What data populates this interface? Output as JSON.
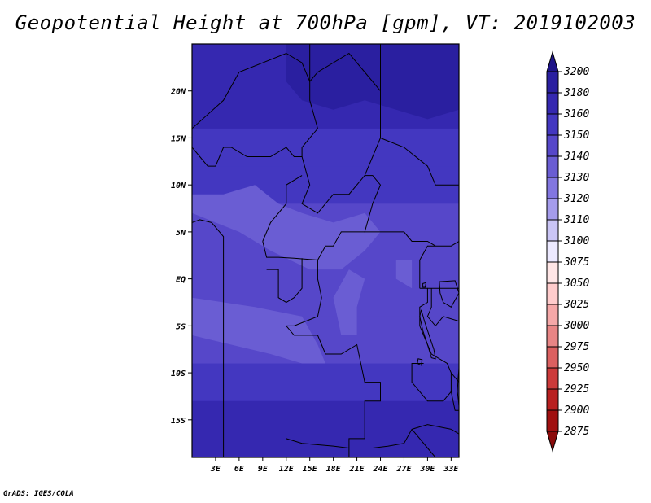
{
  "title": "Geopotential Height at 700hPa [gpm], VT: 2019102003",
  "credit": "GrADS: IGES/COLA",
  "map": {
    "lon_range": [
      0,
      34
    ],
    "lat_range": [
      -19,
      25
    ],
    "lon_ticks": [
      {
        "value": 3,
        "label": "3E"
      },
      {
        "value": 6,
        "label": "6E"
      },
      {
        "value": 9,
        "label": "9E"
      },
      {
        "value": 12,
        "label": "12E"
      },
      {
        "value": 15,
        "label": "15E"
      },
      {
        "value": 18,
        "label": "18E"
      },
      {
        "value": 21,
        "label": "21E"
      },
      {
        "value": 24,
        "label": "24E"
      },
      {
        "value": 27,
        "label": "27E"
      },
      {
        "value": 30,
        "label": "30E"
      },
      {
        "value": 33,
        "label": "33E"
      }
    ],
    "lat_ticks": [
      {
        "value": 20,
        "label": "20N"
      },
      {
        "value": 15,
        "label": "15N"
      },
      {
        "value": 10,
        "label": "10N"
      },
      {
        "value": 5,
        "label": "5N"
      },
      {
        "value": 0,
        "label": "EQ"
      },
      {
        "value": -5,
        "label": "5S"
      },
      {
        "value": -10,
        "label": "10S"
      },
      {
        "value": -15,
        "label": "15S"
      }
    ]
  },
  "colorbar": {
    "levels": [
      "3200",
      "3180",
      "3160",
      "3150",
      "3140",
      "3130",
      "3120",
      "3110",
      "3100",
      "3075",
      "3050",
      "3025",
      "3000",
      "2975",
      "2950",
      "2925",
      "2900",
      "2875"
    ],
    "colors": [
      "#1e1488",
      "#2a1fa0",
      "#3528b0",
      "#4337c0",
      "#5647c9",
      "#6a5dd3",
      "#8276e0",
      "#a59cec",
      "#cac5f5",
      "#ece9ff",
      "#ffe6e6",
      "#ffcccc",
      "#f5a8a8",
      "#e88585",
      "#db6060",
      "#cc3a3a",
      "#b82020",
      "#a01010",
      "#8a0a0a"
    ]
  },
  "chart_data": {
    "type": "heatmap",
    "title": "Geopotential Height at 700hPa [gpm], VT: 2019102003",
    "xlabel": "",
    "ylabel": "",
    "x_range": [
      0,
      34
    ],
    "y_range": [
      -19,
      25
    ],
    "color_levels": [
      2875,
      2900,
      2925,
      2950,
      2975,
      3000,
      3025,
      3050,
      3075,
      3100,
      3110,
      3120,
      3130,
      3140,
      3150,
      3160,
      3180,
      3200
    ],
    "field_bands": [
      {
        "lat_from": 16,
        "lat_to": 25,
        "value": 3160
      },
      {
        "lat_from": 12,
        "lat_to": 16,
        "value": 3150
      },
      {
        "lat_from": 8,
        "lat_to": 12,
        "value": 3150
      },
      {
        "lat_from": -4,
        "lat_to": 8,
        "value": 3140
      },
      {
        "lat_from": -9,
        "lat_to": -4,
        "value": 3140
      },
      {
        "lat_from": -13,
        "lat_to": -9,
        "value": 3150
      },
      {
        "lat_from": -19,
        "lat_to": -13,
        "value": 3160
      }
    ]
  }
}
